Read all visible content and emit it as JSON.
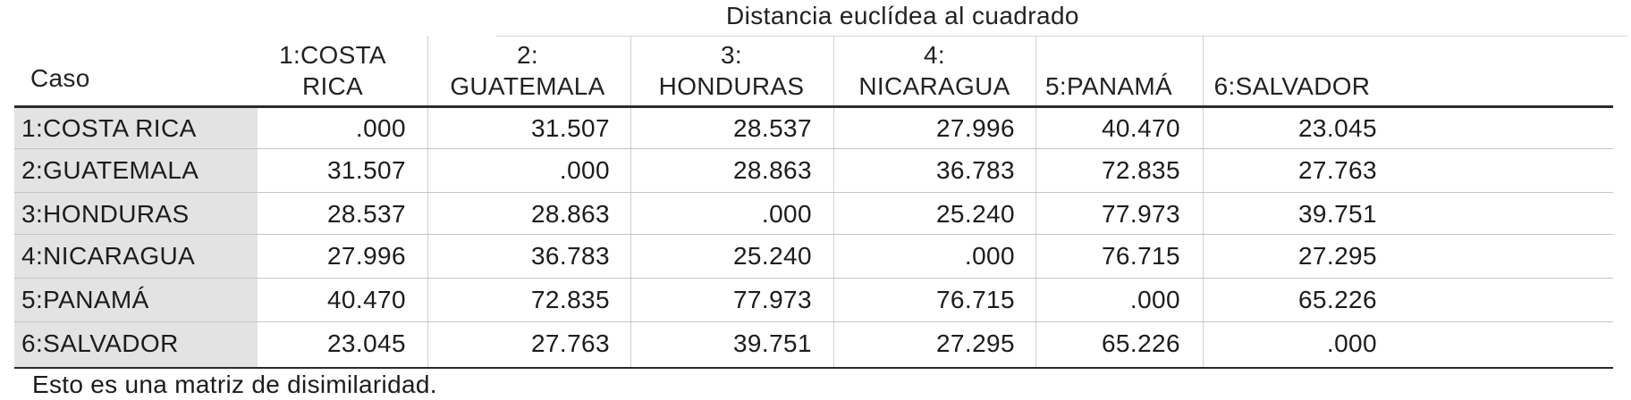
{
  "table": {
    "super_title": "Distancia euclídea al cuadrado",
    "stub_header": "Caso",
    "column_headers": [
      [
        "1:COSTA",
        "RICA"
      ],
      [
        "2:",
        "GUATEMALA"
      ],
      [
        "3:",
        "HONDURAS"
      ],
      [
        "4:",
        "NICARAGUA"
      ],
      [
        "5:PANAMÁ"
      ],
      [
        "6:SALVADOR"
      ]
    ],
    "rows": [
      {
        "label": "1:COSTA RICA",
        "values": [
          ".000",
          "31.507",
          "28.537",
          "27.996",
          "40.470",
          "23.045"
        ]
      },
      {
        "label": "2:GUATEMALA",
        "values": [
          "31.507",
          ".000",
          "28.863",
          "36.783",
          "72.835",
          "27.763"
        ]
      },
      {
        "label": "3:HONDURAS",
        "values": [
          "28.537",
          "28.863",
          ".000",
          "25.240",
          "77.973",
          "39.751"
        ]
      },
      {
        "label": "4:NICARAGUA",
        "values": [
          "27.996",
          "36.783",
          "25.240",
          ".000",
          "76.715",
          "27.295"
        ]
      },
      {
        "label": "5:PANAMÁ",
        "values": [
          "40.470",
          "72.835",
          "77.973",
          "76.715",
          ".000",
          "65.226"
        ]
      },
      {
        "label": "6:SALVADOR",
        "values": [
          "23.045",
          "27.763",
          "39.751",
          "27.295",
          "65.226",
          ".000"
        ]
      }
    ],
    "footnote": "Esto es una matriz de disimilaridad."
  }
}
